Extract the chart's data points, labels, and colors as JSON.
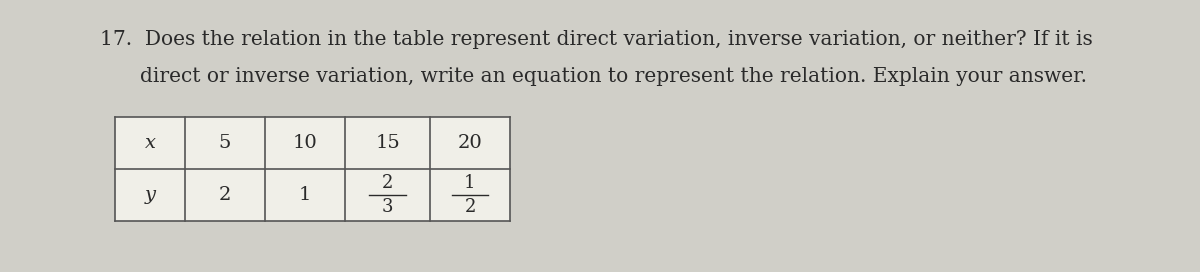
{
  "background_color": "#d0cfc8",
  "text_color": "#2a2a2a",
  "line1": "17.  Does the relation in the table represent direct variation, inverse variation, or neither? If it is",
  "line2": "direct or inverse variation, write an equation to represent the relation. Explain your answer.",
  "table": {
    "x_label": "x",
    "y_label": "y",
    "x_values": [
      "5",
      "10",
      "15",
      "20"
    ],
    "y_values_text": [
      "2",
      "1",
      "2/3",
      "1/2"
    ],
    "y_fractions": [
      false,
      false,
      true,
      true
    ]
  },
  "font_size_text": 14.5,
  "font_size_table": 14,
  "font_family": "DejaVu Serif",
  "table_cell_color": "#f0efe8",
  "table_line_color": "#555555"
}
